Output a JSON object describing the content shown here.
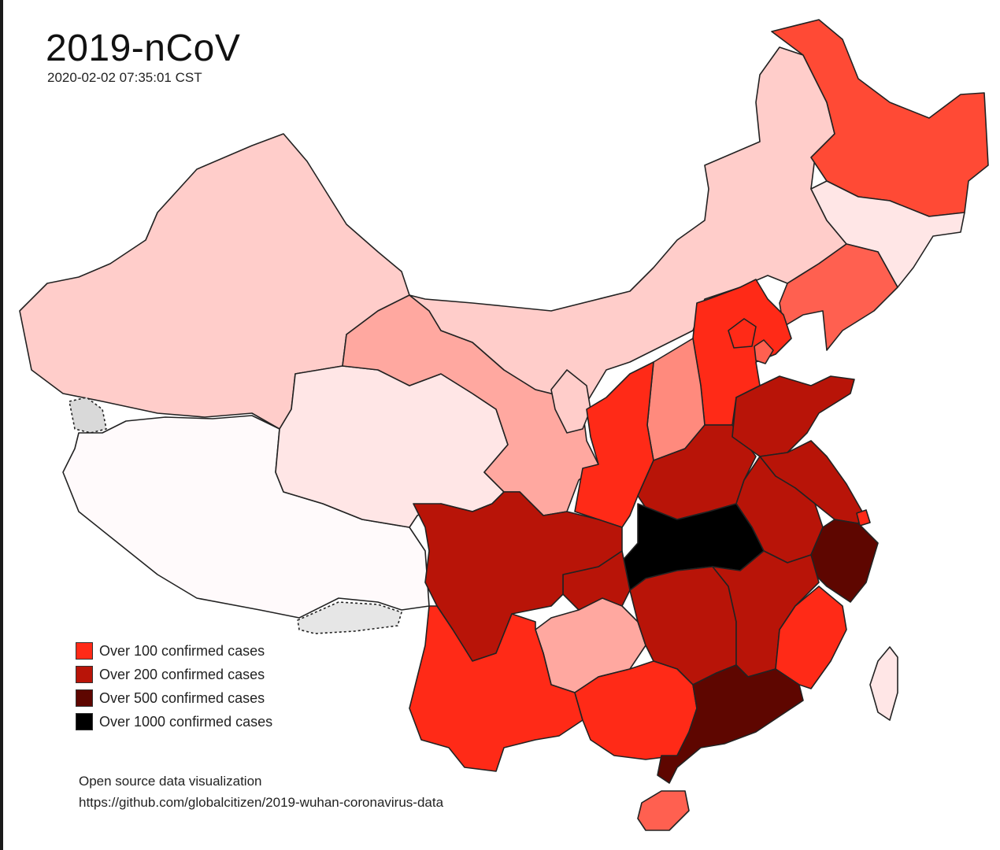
{
  "header": {
    "title": "2019-nCoV",
    "timestamp": "2020-02-02 07:35:01 CST"
  },
  "legend": {
    "items": [
      {
        "label": "Over 100 confirmed cases",
        "color": "#ff2a17"
      },
      {
        "label": "Over 200 confirmed cases",
        "color": "#b81408"
      },
      {
        "label": "Over 500 confirmed cases",
        "color": "#5e0600"
      },
      {
        "label": "Over 1000 confirmed cases",
        "color": "#000000"
      }
    ]
  },
  "credit": {
    "line1": "Open source data visualization",
    "line2": "https://github.com/globalcitizen/2019-wuhan-coronavirus-data"
  },
  "colors": {
    "none": "#fffafb",
    "very_light": "#ffe6e6",
    "light": "#ffcdca",
    "medium_light": "#ffa8a0",
    "medium": "#ff8a7d",
    "medium_strong": "#ff6050",
    "strong": "#ff4a35",
    "over_100": "#ff2a17",
    "over_200": "#b81408",
    "over_500": "#5e0600",
    "over_1000": "#000000",
    "disputed": "#d9d9d9"
  }
}
